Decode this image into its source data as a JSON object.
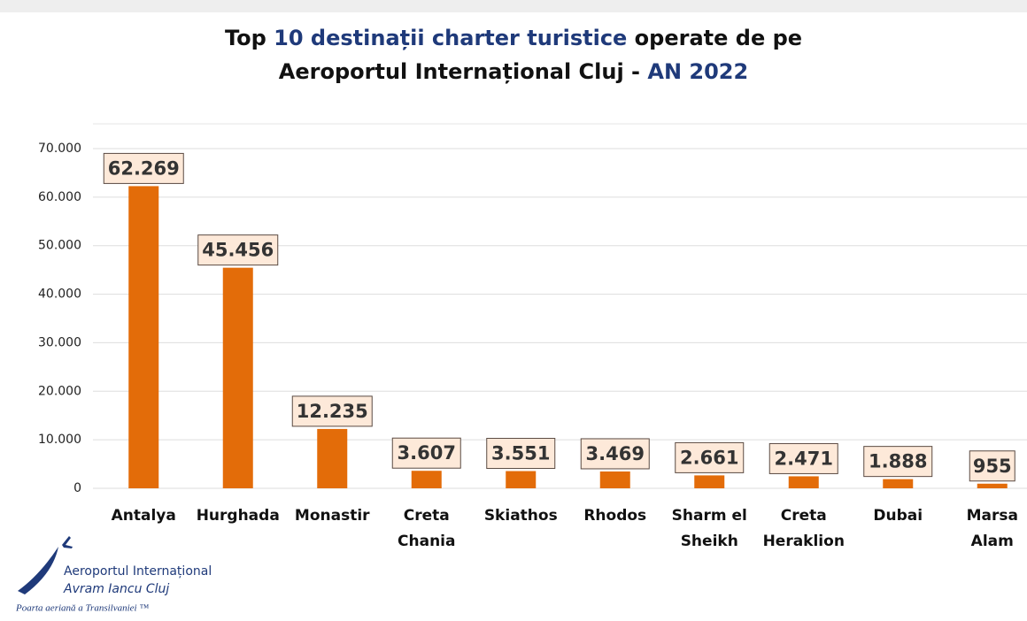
{
  "chart_data": {
    "type": "bar",
    "title": [
      [
        "Top ",
        "10 destinații charter turistice",
        " operate de pe"
      ],
      [
        "Aeroportul Internațional Cluj - ",
        "AN 2022"
      ]
    ],
    "title_highlight_color": "#1f3a7a",
    "categories": [
      [
        "Antalya"
      ],
      [
        "Hurghada"
      ],
      [
        "Monastir"
      ],
      [
        "Creta",
        "Chania"
      ],
      [
        "Skiathos"
      ],
      [
        "Rhodos"
      ],
      [
        "Sharm el",
        "Sheikh"
      ],
      [
        "Creta",
        "Heraklion"
      ],
      [
        "Dubai"
      ],
      [
        "Marsa",
        "Alam"
      ]
    ],
    "values": [
      62269,
      45456,
      12235,
      3607,
      3551,
      3469,
      2661,
      2471,
      1888,
      955
    ],
    "value_labels": [
      "62.269",
      "45.456",
      "12.235",
      "3.607",
      "3.551",
      "3.469",
      "2.661",
      "2.471",
      "1.888",
      "955"
    ],
    "color": "#e36c09",
    "ylim": [
      0,
      70000
    ],
    "yticks": [
      0,
      {
        "value": 10000,
        "label": "10.000"
      },
      {
        "value": 20000,
        "label": "20.000"
      },
      {
        "value": 30000,
        "label": "30.000"
      },
      {
        "value": 40000,
        "label": "40.000"
      },
      {
        "value": 50000,
        "label": "50.000"
      },
      {
        "value": 60000,
        "label": "60.000"
      },
      {
        "value": 70000,
        "label": "70.000"
      }
    ],
    "grid": true
  },
  "logo": {
    "line1": "Aeroportul Internațional",
    "line2": "Avram Iancu Cluj",
    "tagline": "Poarta aeriană a Transilvaniei ™"
  }
}
